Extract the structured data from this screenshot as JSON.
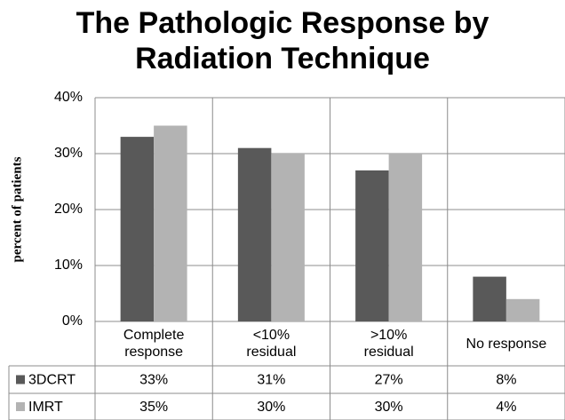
{
  "chart_data": {
    "type": "bar",
    "title": "The Pathologic Response by Radiation Technique",
    "y_label": "percent of patients",
    "categories": [
      "Complete response",
      "<10% residual",
      ">10% residual",
      "No response"
    ],
    "series": [
      {
        "name": "3DCRT",
        "color": "#595959",
        "values": [
          33,
          31,
          27,
          8
        ],
        "value_labels": [
          "33%",
          "31%",
          "27%",
          "8%"
        ]
      },
      {
        "name": "IMRT",
        "color": "#b3b3b3",
        "values": [
          35,
          30,
          30,
          4
        ],
        "value_labels": [
          "35%",
          "30%",
          "30%",
          "4%"
        ]
      }
    ],
    "ylim": [
      0,
      40
    ],
    "yticks": [
      {
        "value": 0,
        "label": "0%"
      },
      {
        "value": 10,
        "label": "10%"
      },
      {
        "value": 20,
        "label": "20%"
      },
      {
        "value": 30,
        "label": "30%"
      },
      {
        "value": 40,
        "label": "40%"
      }
    ],
    "grid": true
  }
}
